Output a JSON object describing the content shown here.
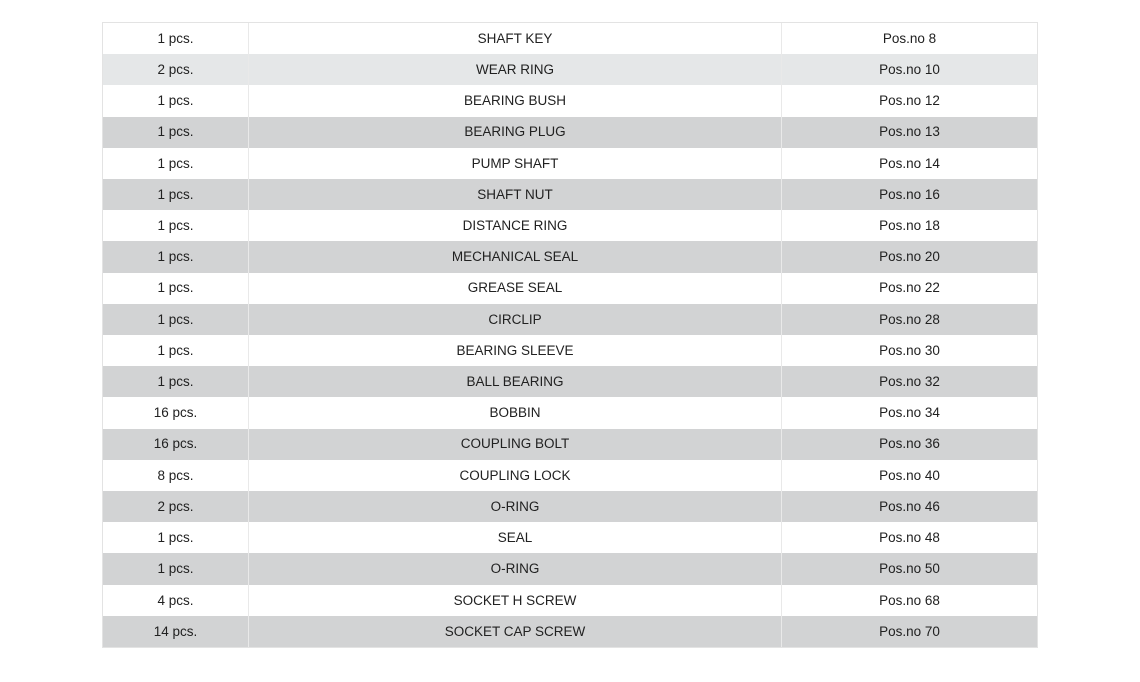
{
  "page": {
    "background": "#ffffff"
  },
  "colors": {
    "row_white": "#ffffff",
    "row_stripe": "#d2d3d4",
    "row_highlight": "#e5e7e8",
    "divider": "#e9e9e9",
    "outer_border": "#e3e3e3",
    "text": "#212121"
  },
  "parts_table": {
    "columns": [
      {
        "key": "qty",
        "name": "quantity"
      },
      {
        "key": "name",
        "name": "part-name"
      },
      {
        "key": "pos",
        "name": "position-number"
      }
    ],
    "rows": [
      {
        "qty": "1 pcs.",
        "name": "SHAFT KEY",
        "pos": "Pos.no 8",
        "highlighted": false
      },
      {
        "qty": "2 pcs.",
        "name": "WEAR RING",
        "pos": "Pos.no 10",
        "highlighted": true
      },
      {
        "qty": "1 pcs.",
        "name": "BEARING BUSH",
        "pos": "Pos.no 12",
        "highlighted": false
      },
      {
        "qty": "1 pcs.",
        "name": "BEARING PLUG",
        "pos": "Pos.no 13",
        "highlighted": false
      },
      {
        "qty": "1 pcs.",
        "name": "PUMP SHAFT",
        "pos": "Pos.no 14",
        "highlighted": false
      },
      {
        "qty": "1 pcs.",
        "name": "SHAFT NUT",
        "pos": "Pos.no 16",
        "highlighted": false
      },
      {
        "qty": "1 pcs.",
        "name": "DISTANCE RING",
        "pos": "Pos.no 18",
        "highlighted": false
      },
      {
        "qty": "1 pcs.",
        "name": "MECHANICAL SEAL",
        "pos": "Pos.no 20",
        "highlighted": false
      },
      {
        "qty": "1 pcs.",
        "name": "GREASE SEAL",
        "pos": "Pos.no 22",
        "highlighted": false
      },
      {
        "qty": "1 pcs.",
        "name": "CIRCLIP",
        "pos": "Pos.no 28",
        "highlighted": false
      },
      {
        "qty": "1 pcs.",
        "name": "BEARING SLEEVE",
        "pos": "Pos.no 30",
        "highlighted": false
      },
      {
        "qty": "1 pcs.",
        "name": "BALL BEARING",
        "pos": "Pos.no 32",
        "highlighted": false
      },
      {
        "qty": "16 pcs.",
        "name": "BOBBIN",
        "pos": "Pos.no 34",
        "highlighted": false
      },
      {
        "qty": "16 pcs.",
        "name": "COUPLING BOLT",
        "pos": "Pos.no 36",
        "highlighted": false
      },
      {
        "qty": "8 pcs.",
        "name": "COUPLING LOCK",
        "pos": "Pos.no 40",
        "highlighted": false
      },
      {
        "qty": "2 pcs.",
        "name": "O-RING",
        "pos": "Pos.no 46",
        "highlighted": false
      },
      {
        "qty": "1 pcs.",
        "name": "SEAL",
        "pos": "Pos.no 48",
        "highlighted": false
      },
      {
        "qty": "1 pcs.",
        "name": "O-RING",
        "pos": "Pos.no 50",
        "highlighted": false
      },
      {
        "qty": "4 pcs.",
        "name": "SOCKET H SCREW",
        "pos": "Pos.no 68",
        "highlighted": false
      },
      {
        "qty": "14 pcs.",
        "name": "SOCKET CAP SCREW",
        "pos": "Pos.no 70",
        "highlighted": false
      }
    ]
  }
}
